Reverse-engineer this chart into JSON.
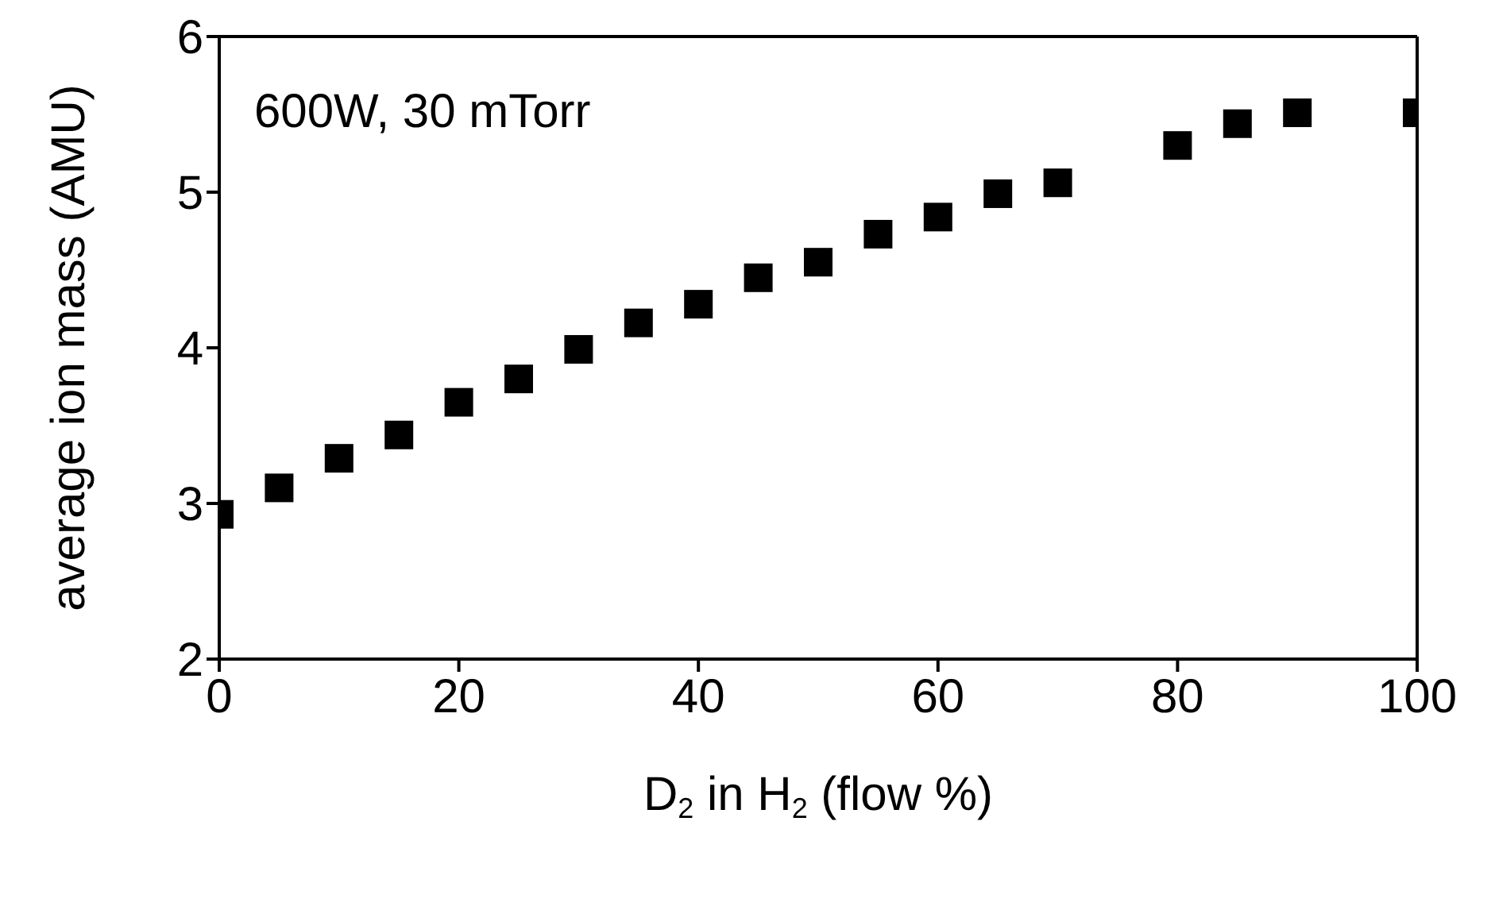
{
  "chart_data": {
    "type": "scatter",
    "xlabel": "D$_{2}$ in H$_{2}$ (flow %)",
    "ylabel": "average ion mass (AMU)",
    "annotations": [
      "600W, 30 mTorr"
    ],
    "x": [
      0,
      5,
      10,
      15,
      20,
      25,
      30,
      35,
      40,
      45,
      50,
      55,
      60,
      65,
      70,
      80,
      85,
      90,
      100
    ],
    "series": [
      {
        "color": "#000000",
        "values": [
          2.93,
          3.1,
          3.29,
          3.44,
          3.65,
          3.8,
          3.99,
          4.16,
          4.28,
          4.45,
          4.55,
          4.73,
          4.84,
          4.99,
          5.06,
          5.3,
          5.44,
          5.51,
          5.51
        ]
      }
    ],
    "xlim": [
      0,
      100
    ],
    "xticks": [
      0,
      20,
      40,
      60,
      80,
      100
    ],
    "ylim": [
      2,
      6
    ],
    "yticks": [
      2,
      3,
      4,
      5,
      6
    ],
    "marker": "square"
  }
}
